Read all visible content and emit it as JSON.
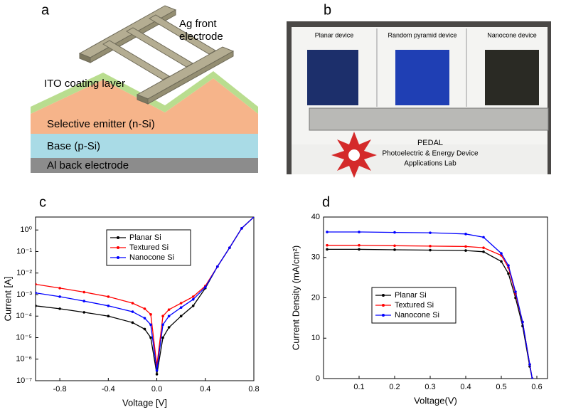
{
  "panel_labels": [
    "a",
    "b",
    "c",
    "d"
  ],
  "diagram": {
    "electrode": [
      "Ag front",
      "electrode"
    ],
    "ito": "ITO coating layer",
    "emitter": "Selective emitter (n-Si)",
    "base": "Base (p-Si)",
    "back": "Al back electrode"
  },
  "photo": {
    "devices": [
      "Planar device",
      "Random pyramid device",
      "Nanocone device"
    ],
    "lab": [
      "PEDAL",
      "Photoelectric & Energy Device",
      "Applications Lab"
    ]
  },
  "chart_data": [
    {
      "type": "line",
      "log_y": true,
      "xlabel": "Voltage [V]",
      "ylabel": "Current [A]",
      "x": [
        -1,
        -0.8,
        -0.6,
        -0.4,
        -0.2,
        -0.1,
        -0.05,
        0,
        0.05,
        0.1,
        0.2,
        0.3,
        0.4,
        0.5,
        0.6,
        0.7,
        0.8
      ],
      "xlim": [
        -1,
        0.8
      ],
      "ylim": [
        1e-07,
        4
      ],
      "xticks": [
        -0.8,
        -0.4,
        {
          "value": 0,
          "label": "0.0"
        },
        0.4,
        0.8
      ],
      "yticks": [
        {
          "value": 1e-07,
          "label": "10⁻⁷"
        },
        {
          "value": 1e-06,
          "label": "10⁻⁶"
        },
        {
          "value": 1e-05,
          "label": "10⁻⁵"
        },
        {
          "value": 0.0001,
          "label": "10⁻⁴"
        },
        {
          "value": 0.001,
          "label": "10⁻³"
        },
        {
          "value": 0.01,
          "label": "10⁻²"
        },
        {
          "value": 0.1,
          "label": "10⁻¹"
        },
        {
          "value": 1,
          "label": "10⁰"
        }
      ],
      "legend": "upper-left",
      "series": [
        {
          "name": "Planar Si",
          "color": "#000000",
          "values": [
            0.0003,
            0.00022,
            0.00015,
            0.0001,
            5e-05,
            2.5e-05,
            1e-05,
            2e-07,
            1e-05,
            3e-05,
            0.0001,
            0.0003,
            0.002,
            0.02,
            0.15,
            1.2,
            4
          ]
        },
        {
          "name": "Textured Si",
          "color": "#ff0000",
          "values": [
            0.003,
            0.002,
            0.0013,
            0.0008,
            0.0004,
            0.00022,
            0.00012,
            5e-07,
            0.0001,
            0.0002,
            0.0004,
            0.0008,
            0.0025,
            0.02,
            0.15,
            1.2,
            4
          ]
        },
        {
          "name": "Nanocone Si",
          "color": "#0000ff",
          "values": [
            0.0012,
            0.0008,
            0.0005,
            0.0003,
            0.00016,
            8e-05,
            4e-05,
            3e-07,
            4e-05,
            0.0001,
            0.00025,
            0.0006,
            0.0022,
            0.02,
            0.15,
            1.2,
            4
          ]
        }
      ]
    },
    {
      "type": "line",
      "log_y": false,
      "xlabel": "Voltage(V)",
      "ylabel": "Current Density (mA/cm²)",
      "x": [
        0.01,
        0.1,
        0.2,
        0.3,
        0.4,
        0.45,
        0.5,
        0.52,
        0.54,
        0.56,
        0.58,
        0.587
      ],
      "xlim": [
        0,
        0.63
      ],
      "ylim": [
        0,
        40
      ],
      "xticks": [
        0.1,
        0.2,
        0.3,
        0.4,
        0.5,
        0.6
      ],
      "yticks": [
        0,
        10,
        20,
        30,
        40
      ],
      "legend": "lower-left",
      "series": [
        {
          "name": "Planar Si",
          "color": "#000000",
          "values": [
            32,
            32,
            31.9,
            31.8,
            31.7,
            31.4,
            29,
            26,
            20,
            13,
            3,
            0
          ]
        },
        {
          "name": "Textured Si",
          "color": "#ff0000",
          "values": [
            33,
            33,
            32.9,
            32.8,
            32.7,
            32.4,
            30.5,
            27.5,
            21,
            14,
            3.5,
            0
          ]
        },
        {
          "name": "Nanocone Si",
          "color": "#0000ff",
          "values": [
            36.3,
            36.3,
            36.2,
            36.1,
            35.8,
            35,
            31,
            28,
            21.5,
            14,
            3.5,
            0
          ]
        }
      ]
    }
  ]
}
